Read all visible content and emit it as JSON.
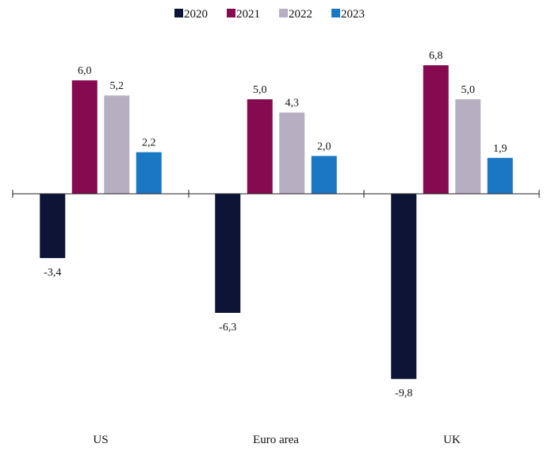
{
  "chart_data": {
    "type": "bar",
    "categories": [
      "US",
      "Euro area",
      "UK"
    ],
    "series": [
      {
        "name": "2020",
        "color": "#0d1436",
        "values": [
          -3.4,
          -6.3,
          -9.8
        ],
        "labels": [
          "-3,4",
          "-6,3",
          "-9,8"
        ]
      },
      {
        "name": "2021",
        "color": "#850a4f",
        "values": [
          6.0,
          5.0,
          6.8
        ],
        "labels": [
          "6,0",
          "5,0",
          "6,8"
        ]
      },
      {
        "name": "2022",
        "color": "#b6afc2",
        "values": [
          5.2,
          4.3,
          5.0
        ],
        "labels": [
          "5,2",
          "4,3",
          "5,0"
        ]
      },
      {
        "name": "2023",
        "color": "#1a77c4",
        "values": [
          2.2,
          2.0,
          1.9
        ],
        "labels": [
          "2,2",
          "2,0",
          "1,9"
        ]
      }
    ],
    "title": "",
    "xlabel": "",
    "ylabel": "",
    "ylim": [
      -10,
      8
    ],
    "grid": false,
    "legend_position": "top-center"
  }
}
